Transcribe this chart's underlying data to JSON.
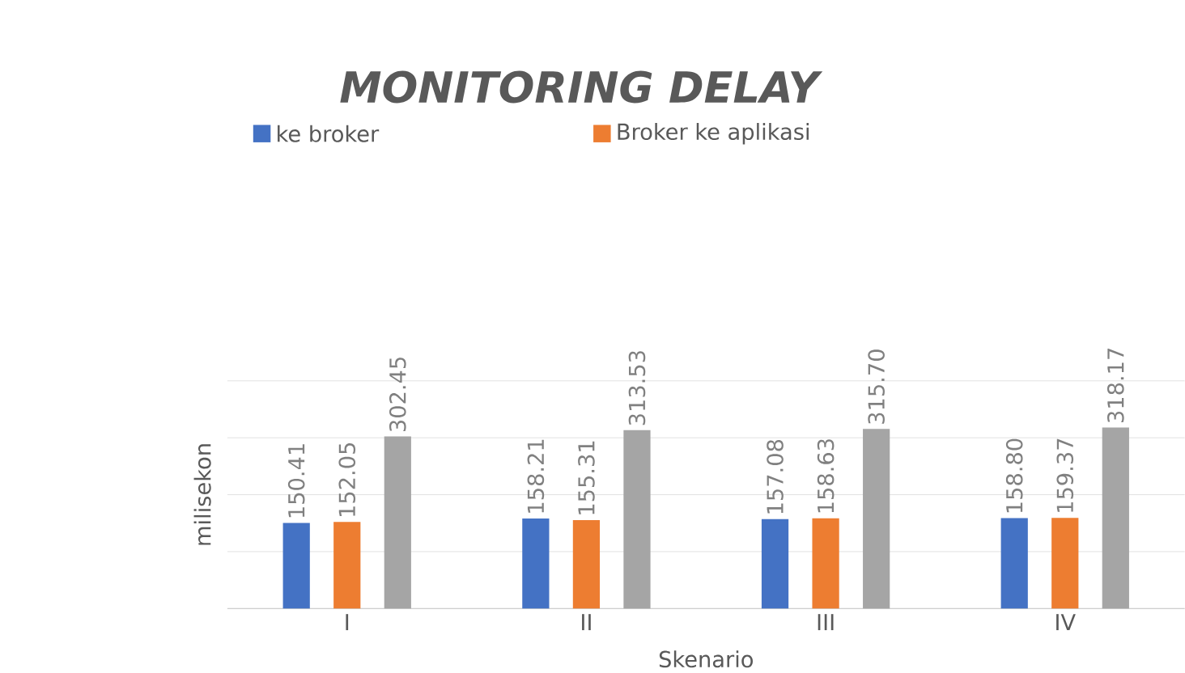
{
  "chart_data": {
    "type": "bar",
    "title": "MONITORING DELAY",
    "xlabel": "Skenario",
    "ylabel": "milisekon",
    "categories": [
      "I",
      "II",
      "III",
      "IV"
    ],
    "series": [
      {
        "name": "ke broker",
        "color": "#4472c4",
        "values": [
          150.41,
          158.21,
          157.08,
          158.8
        ],
        "value_labels": [
          "150.41",
          "158.21",
          "157.08",
          "158.80"
        ]
      },
      {
        "name": "Broker ke aplikasi",
        "color": "#ed7d31",
        "values": [
          152.05,
          155.31,
          158.63,
          159.37
        ],
        "value_labels": [
          "152.05",
          "155.31",
          "158.63",
          "159.37"
        ]
      },
      {
        "color": "#a5a5a5",
        "values": [
          302.45,
          313.53,
          315.7,
          318.17
        ],
        "value_labels": [
          "302.45",
          "313.53",
          "315.70",
          "318.17"
        ]
      }
    ],
    "ylim": [
      0,
      400
    ],
    "tick_labels": "x",
    "grid": "y",
    "legend": "top"
  }
}
